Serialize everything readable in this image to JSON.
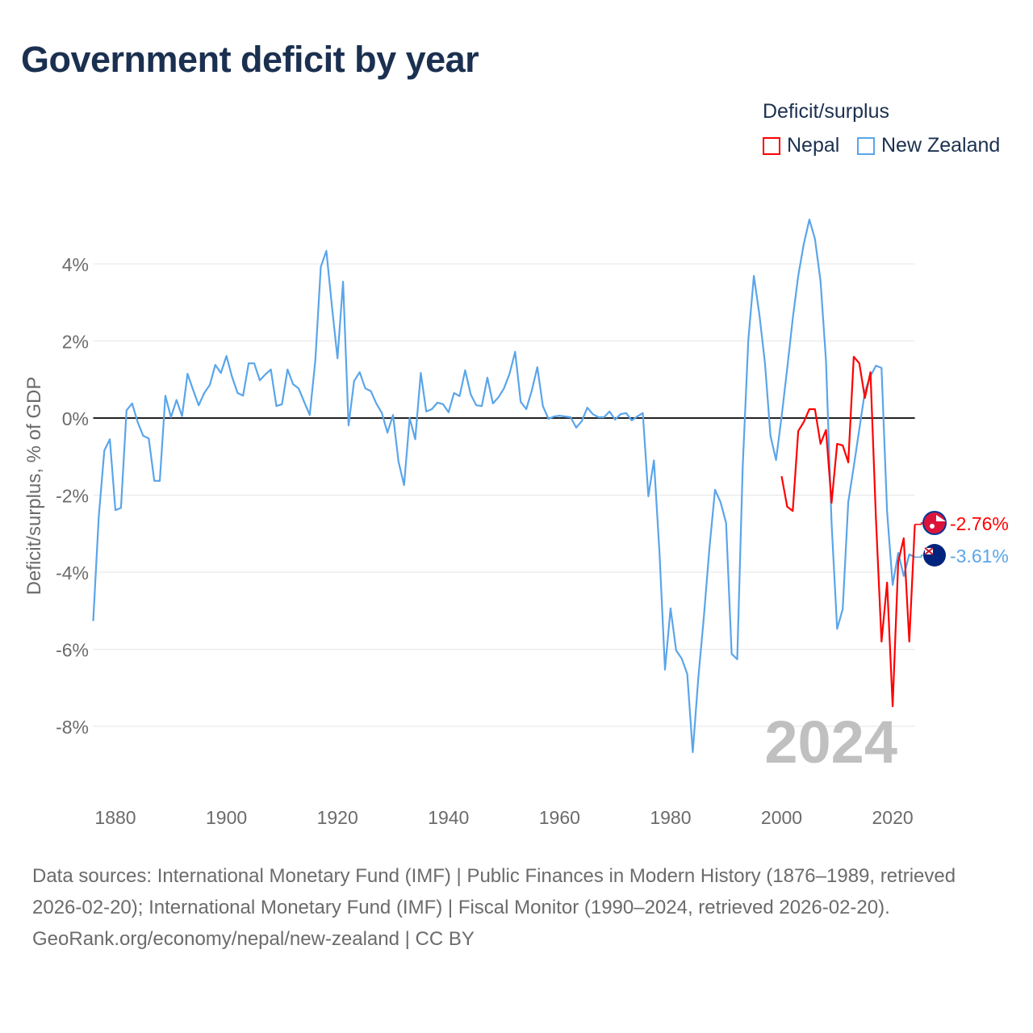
{
  "colors": {
    "nepal": "#ff0000",
    "new_zealand": "#5aa5ea",
    "zero_line": "#222222",
    "grid": "#e6e6e6",
    "year_watermark": "#c0c0c0"
  },
  "chart_data": {
    "type": "line",
    "title": "Government deficit by year",
    "ylabel": "Deficit/surplus, % of GDP",
    "xlabel": "",
    "xlim": [
      1876,
      2024
    ],
    "ylim": [
      -10,
      5.5
    ],
    "x_ticks": [
      1880,
      1900,
      1920,
      1940,
      1960,
      1980,
      2000,
      2020
    ],
    "x_tick_labels": [
      "1880",
      "1900",
      "1920",
      "1940",
      "1960",
      "1980",
      "2000",
      "2020"
    ],
    "y_ticks": [
      4,
      2,
      0,
      -2,
      -4,
      -6,
      -8
    ],
    "y_tick_labels": [
      "4%",
      "2%",
      "0%",
      "-2%",
      "-4%",
      "-6%",
      "-8%"
    ],
    "grid": true,
    "legend_title": "Deficit/surplus",
    "legend_position": "top-right",
    "year_watermark": "2024",
    "series": [
      {
        "name": "Nepal",
        "color": "#ff0000",
        "start_year": 2000,
        "values": [
          -1.51,
          -2.3,
          -2.41,
          -0.34,
          -0.1,
          0.23,
          0.23,
          -0.67,
          -0.31,
          -2.2,
          -0.67,
          -0.71,
          -1.15,
          1.59,
          1.42,
          0.52,
          1.19,
          -2.62,
          -5.8,
          -4.27,
          -7.48,
          -3.73,
          -3.12,
          -5.8,
          -2.76
        ],
        "end_label": "-2.76%"
      },
      {
        "name": "New Zealand",
        "color": "#5aa5ea",
        "start_year": 1876,
        "values": [
          -5.27,
          -2.55,
          -0.84,
          -0.55,
          -2.39,
          -2.33,
          0.2,
          0.38,
          -0.1,
          -0.46,
          -0.53,
          -1.63,
          -1.63,
          0.58,
          0.02,
          0.47,
          0.05,
          1.15,
          0.73,
          0.33,
          0.65,
          0.86,
          1.38,
          1.17,
          1.61,
          1.07,
          0.65,
          0.58,
          1.42,
          1.42,
          0.98,
          1.13,
          1.26,
          0.31,
          0.36,
          1.26,
          0.88,
          0.77,
          0.42,
          0.08,
          1.49,
          3.92,
          4.34,
          2.9,
          1.55,
          3.54,
          -0.19,
          0.96,
          1.19,
          0.77,
          0.7,
          0.38,
          0.13,
          -0.38,
          0.08,
          -1.13,
          -1.74,
          0,
          -0.55,
          1.17,
          0.17,
          0.23,
          0.4,
          0.36,
          0.15,
          0.65,
          0.57,
          1.24,
          0.61,
          0.33,
          0.31,
          1.05,
          0.38,
          0.54,
          0.77,
          1.15,
          1.72,
          0.42,
          0.23,
          0.71,
          1.32,
          0.31,
          -0.02,
          0.04,
          0.06,
          0.04,
          0.02,
          -0.25,
          -0.08,
          0.27,
          0.1,
          0.02,
          0.02,
          0.17,
          -0.04,
          0.1,
          0.13,
          -0.06,
          0.04,
          0.13,
          -2.03,
          -1.1,
          -3.5,
          -6.53,
          -4.94,
          -6.03,
          -6.24,
          -6.64,
          -8.67,
          -6.74,
          -5.15,
          -3.37,
          -1.86,
          -2.18,
          -2.72,
          -6.12,
          -6.26,
          -1.26,
          2.01,
          3.69,
          2.68,
          1.42,
          -0.46,
          -1.09,
          0.04,
          1.28,
          2.58,
          3.69,
          4.52,
          5.15,
          4.65,
          3.56,
          1.49,
          -2.72,
          -5.47,
          -4.96,
          -2.18,
          -1.26,
          -0.29,
          0.69,
          1.09,
          1.36,
          1.3,
          -2.43,
          -4.33,
          -3.5,
          -4.1,
          -3.54,
          -3.61
        ],
        "end_label": "-3.61%"
      }
    ]
  },
  "legend": {
    "title": "Deficit/surplus",
    "items": [
      {
        "label": "Nepal"
      },
      {
        "label": "New Zealand"
      }
    ]
  },
  "footer": {
    "sources": "Data sources: International Monetary Fund (IMF) | Public Finances in Modern History (1876–1989, retrieved 2026-02-20); International Monetary Fund (IMF) | Fiscal Monitor (1990–2024, retrieved 2026-02-20).",
    "credit": "GeoRank.org/economy/nepal/new-zealand | CC BY"
  }
}
